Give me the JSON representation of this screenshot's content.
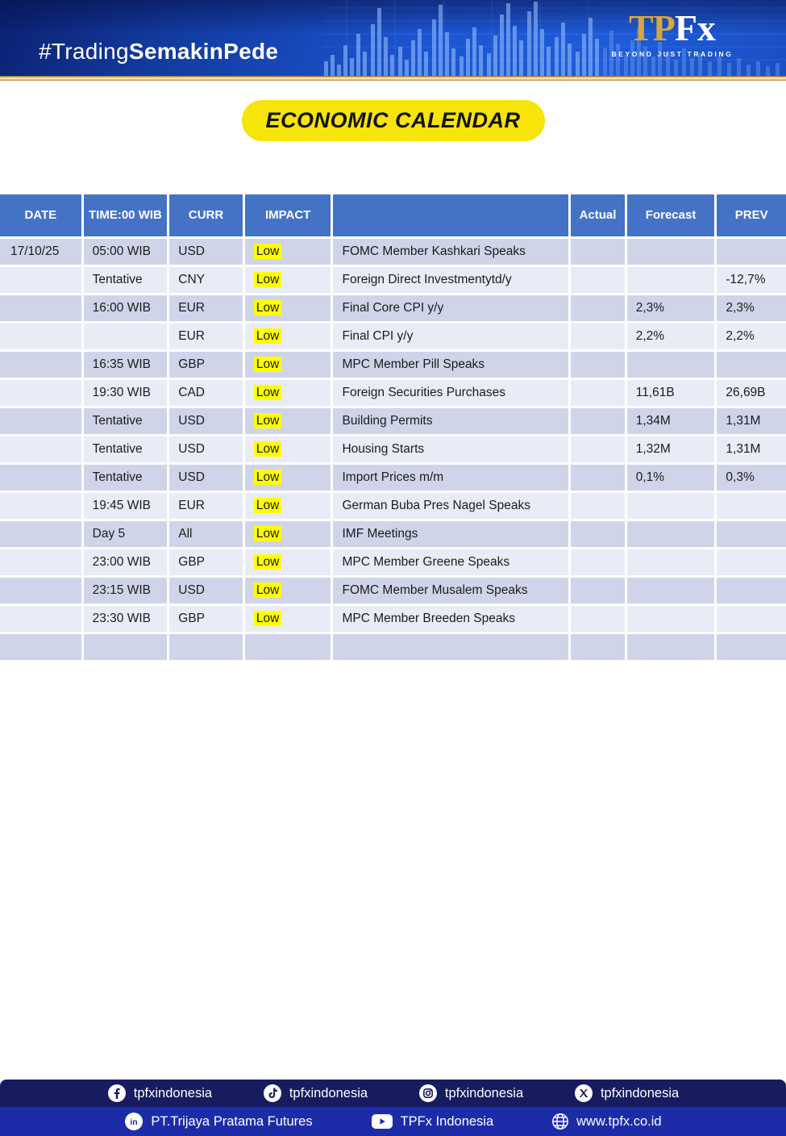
{
  "banner": {
    "hashtag_light": "#Trading",
    "hashtag_bold": "SemakinPede",
    "logo_tp": "TP",
    "logo_fx": "Fx",
    "logo_tagline": "BEYOND JUST TRADING"
  },
  "title": "ECONOMIC CALENDAR",
  "table": {
    "headers": [
      "DATE",
      "TIME:00 WIB",
      "CURR",
      "IMPACT",
      "",
      "Actual",
      "Forecast",
      "PREV"
    ],
    "rows": [
      [
        "17/10/25",
        "05:00 WIB",
        "USD",
        "Low",
        "FOMC Member Kashkari Speaks",
        "",
        "",
        ""
      ],
      [
        "",
        "Tentative",
        "CNY",
        "Low",
        "Foreign Direct Investmentytd/y",
        "",
        "",
        "-12,7%"
      ],
      [
        "",
        "16:00 WIB",
        "EUR",
        "Low",
        "Final Core CPI y/y",
        "",
        "2,3%",
        "2,3%"
      ],
      [
        "",
        "",
        "EUR",
        "Low",
        "Final CPI y/y",
        "",
        "2,2%",
        "2,2%"
      ],
      [
        "",
        "16:35 WIB",
        "GBP",
        "Low",
        "MPC Member Pill Speaks",
        "",
        "",
        ""
      ],
      [
        "",
        "19:30 WIB",
        "CAD",
        "Low",
        "Foreign Securities Purchases",
        "",
        "11,61B",
        "26,69B"
      ],
      [
        "",
        "Tentative",
        "USD",
        "Low",
        "Building Permits",
        "",
        "1,34M",
        "1,31M"
      ],
      [
        "",
        "Tentative",
        "USD",
        "Low",
        "Housing Starts",
        "",
        "1,32M",
        "1,31M"
      ],
      [
        "",
        "Tentative",
        "USD",
        "Low",
        "Import Prices m/m",
        "",
        "0,1%",
        "0,3%"
      ],
      [
        "",
        "19:45 WIB",
        "EUR",
        "Low",
        "German Buba Pres Nagel Speaks",
        "",
        "",
        ""
      ],
      [
        "",
        "Day 5",
        "All",
        "Low",
        "IMF Meetings",
        "",
        "",
        ""
      ],
      [
        "",
        "23:00 WIB",
        "GBP",
        "Low",
        "MPC Member Greene Speaks",
        "",
        "",
        ""
      ],
      [
        "",
        "23:15 WIB",
        "USD",
        "Low",
        "FOMC Member Musalem Speaks",
        "",
        "",
        ""
      ],
      [
        "",
        "23:30 WIB",
        "GBP",
        "Low",
        "MPC Member Breeden Speaks",
        "",
        "",
        ""
      ],
      [
        "",
        "",
        "",
        "",
        "",
        "",
        "",
        ""
      ]
    ]
  },
  "footer": {
    "row1": [
      {
        "icon": "facebook-icon",
        "label": "tpfxindonesia"
      },
      {
        "icon": "tiktok-icon",
        "label": "tpfxindonesia"
      },
      {
        "icon": "instagram-icon",
        "label": "tpfxindonesia"
      },
      {
        "icon": "x-icon",
        "label": "tpfxindonesia"
      }
    ],
    "row2": [
      {
        "icon": "linkedin-icon",
        "label": "PT.Trijaya Pratama Futures"
      },
      {
        "icon": "youtube-icon",
        "label": "TPFx Indonesia"
      },
      {
        "icon": "globe-icon",
        "label": "www.tpfx.co.id"
      }
    ]
  },
  "colors": {
    "header_blue": "#4473c5",
    "band_dark": "#cfd4e9",
    "band_light": "#e9ebf6",
    "impact_highlight": "#ffff00",
    "title_pill_yellow": "#f6e40a",
    "footer_navy": "#171b5f",
    "footer_blue": "#1c2ca8",
    "gold_accent": "#d8a63e"
  }
}
